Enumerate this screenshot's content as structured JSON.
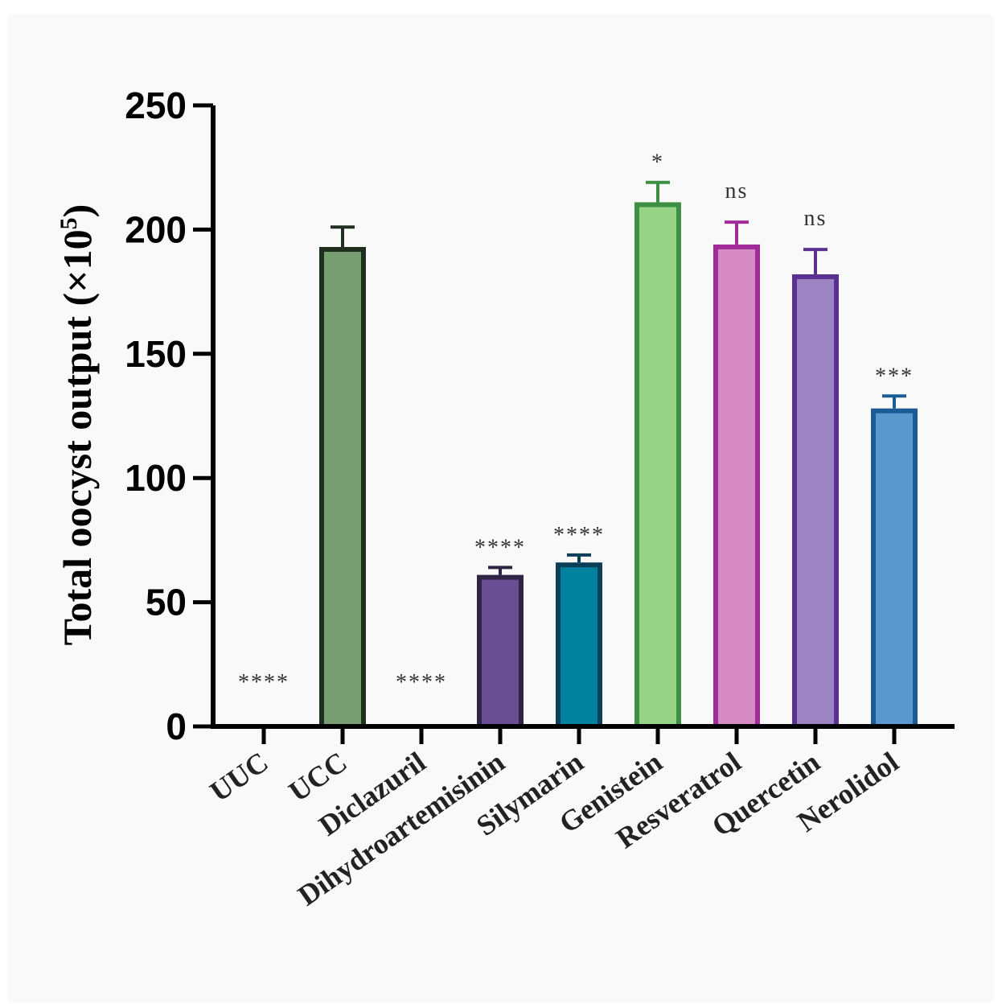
{
  "chart_data": {
    "type": "bar",
    "ylabel": "Total oocyst output (×10",
    "ylabel_sup": "5",
    "ylabel_close": ")",
    "ylim": [
      0,
      250
    ],
    "yticks": [
      "0",
      "50",
      "100",
      "150",
      "200",
      "250"
    ],
    "categories": [
      "UUC",
      "UCC",
      "Diclazuril",
      "Dihydroartemisinin",
      "Silymarin",
      "Genistein",
      "Resveratrol",
      "Quercetin",
      "Nerolidol"
    ],
    "values": [
      0,
      193,
      0,
      61,
      66,
      211,
      194,
      182,
      128
    ],
    "errors": [
      0,
      8,
      0,
      3,
      3,
      8,
      9,
      10,
      5
    ],
    "annotations": [
      "****",
      "",
      "****",
      "****",
      "****",
      "*",
      "ns",
      "ns",
      "***"
    ],
    "fill_colors": [
      "#ffffff",
      "#789f72",
      "#ffffff",
      "#6a4e93",
      "#00829f",
      "#98d487",
      "#d68cc3",
      "#9c83c2",
      "#5b98cf"
    ],
    "edge_colors": [
      "#000000",
      "#1f2e1e",
      "#000000",
      "#2f2443",
      "#0b3f57",
      "#3c8f43",
      "#a02b99",
      "#5a3190",
      "#1b5c96"
    ],
    "grid": false
  }
}
